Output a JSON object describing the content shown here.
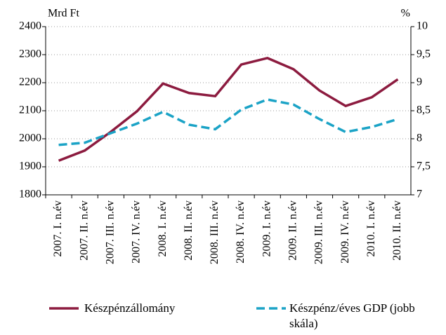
{
  "chart_data": {
    "type": "line",
    "y_label": "Mrd Ft",
    "y2_label": "%",
    "categories": [
      "2007. I. n.év",
      "2007. II. n.év",
      "2007. III. n.év",
      "2007. IV. n.év",
      "2008. I. n.év",
      "2008. II. n.év",
      "2008. III. n.év",
      "2008. IV. n.év",
      "2009. I. n.év",
      "2009. II. n.év",
      "2009. III. n.év",
      "2009. IV. n.év",
      "2010. I. n.év",
      "2010. II. n.év"
    ],
    "series": [
      {
        "name": "Készpénzállomány",
        "color": "#8c1b3f",
        "values": [
          1922,
          1958,
          2025,
          2098,
          2197,
          2163,
          2152,
          2265,
          2288,
          2248,
          2172,
          2117,
          2148,
          2212
        ]
      },
      {
        "name": "Készpénz/éves GDP (jobb skála)",
        "color": "#1ba3c6",
        "axis": "y2",
        "dashed": true,
        "values": [
          7.89,
          7.93,
          8.1,
          8.27,
          8.48,
          8.25,
          8.17,
          8.52,
          8.7,
          8.61,
          8.35,
          8.12,
          8.21,
          8.35
        ]
      }
    ],
    "ylim": [
      1800,
      2400
    ],
    "yticks": [
      1800,
      1900,
      2000,
      2100,
      2200,
      2300,
      2400
    ],
    "y2lim": [
      7,
      10
    ],
    "y2ticks": [
      7,
      {
        "value": 7.5,
        "label": "7,5"
      },
      8,
      {
        "value": 8.5,
        "label": "8,5"
      },
      9,
      {
        "value": 9.5,
        "label": "9,5"
      },
      10
    ],
    "grid": true
  }
}
